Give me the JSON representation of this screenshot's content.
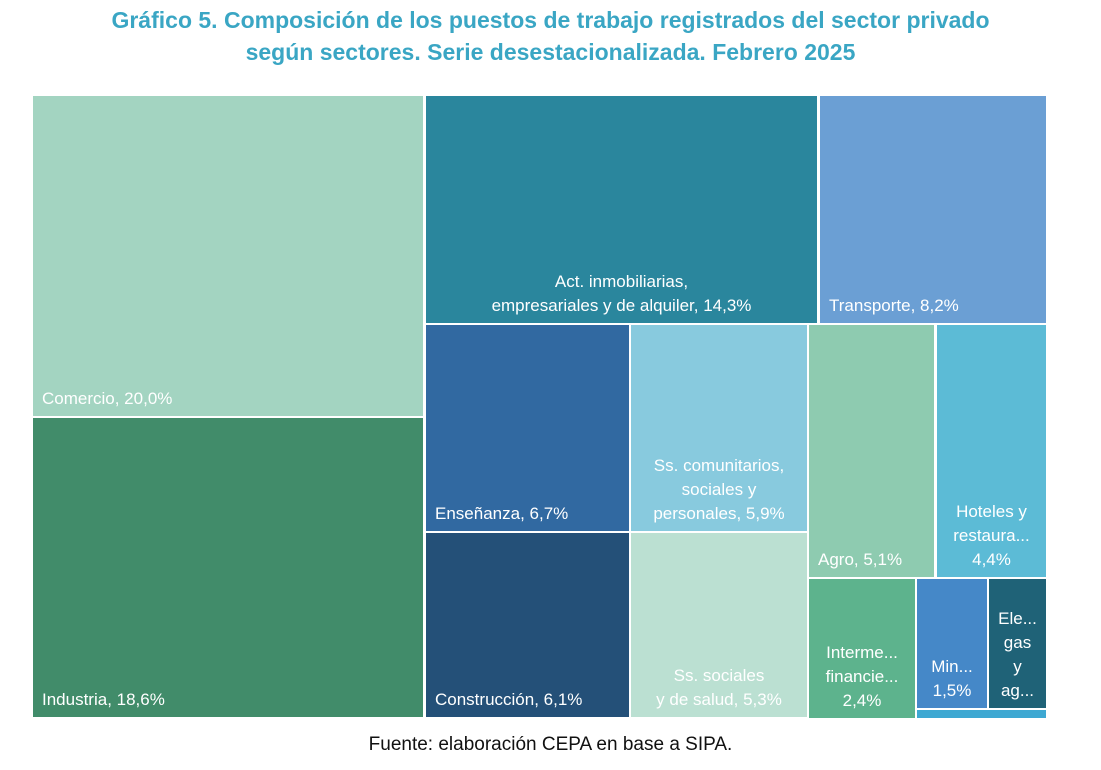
{
  "title": {
    "line1": "Gráfico 5. Composición de los puestos de trabajo registrados del sector privado",
    "line2": "según sectores. Serie desestacionalizada. Febrero 2025"
  },
  "source": "Fuente: elaboración CEPA en base a SIPA.",
  "colors": {
    "title": "#3aa6c4"
  },
  "chart_data": {
    "type": "treemap",
    "unit": "%",
    "items": [
      {
        "label": [
          "Comercio, 20,0%"
        ],
        "name": "Comercio",
        "value": 20.0,
        "color": "#a3d4c1",
        "align": "left"
      },
      {
        "label": [
          "Industria, 18,6%"
        ],
        "name": "Industria",
        "value": 18.6,
        "color": "#418c6a",
        "align": "left"
      },
      {
        "label": [
          "Act. inmobiliarias,",
          "empresariales y de alquiler, 14,3%"
        ],
        "name": "Act. inmobiliarias, empresariales y de alquiler",
        "value": 14.3,
        "color": "#2a869d",
        "align": "center"
      },
      {
        "label": [
          "Transporte, 8,2%"
        ],
        "name": "Transporte",
        "value": 8.2,
        "color": "#6b9fd4",
        "align": "left"
      },
      {
        "label": [
          "Enseñanza, 6,7%"
        ],
        "name": "Enseñanza",
        "value": 6.7,
        "color": "#3169a1",
        "align": "left"
      },
      {
        "label": [
          "Ss. comunitarios,",
          "sociales y",
          "personales, 5,9%"
        ],
        "name": "Ss. comunitarios, sociales y personales",
        "value": 5.9,
        "color": "#88cade",
        "align": "center"
      },
      {
        "label": [
          "Construcción, 6,1%"
        ],
        "name": "Construcción",
        "value": 6.1,
        "color": "#245078",
        "align": "left"
      },
      {
        "label": [
          "Ss. sociales",
          "y de salud, 5,3%"
        ],
        "name": "Ss. sociales y de salud",
        "value": 5.3,
        "color": "#bbe0d2",
        "align": "center"
      },
      {
        "label": [
          "Agro, 5,1%"
        ],
        "name": "Agro",
        "value": 5.1,
        "color": "#8ecbb0",
        "align": "left"
      },
      {
        "label": [
          "Hoteles y",
          "restaura...",
          "4,4%"
        ],
        "name": "Hoteles y restaurantes",
        "value": 4.4,
        "color": "#5cbbd6",
        "align": "center"
      },
      {
        "label": [
          "Interme...",
          "financie...",
          "2,4%"
        ],
        "name": "Intermediación financiera",
        "value": 2.4,
        "color": "#5db38d",
        "align": "center"
      },
      {
        "label": [
          "Min...",
          "1,5%"
        ],
        "name": "Minería",
        "value": 1.5,
        "color": "#4588c8",
        "align": "center"
      },
      {
        "label": [
          "Ele...",
          "gas",
          "y",
          "ag..."
        ],
        "name": "Electricidad, gas y agua",
        "value": null,
        "color": "#1f6277",
        "align": "center"
      },
      {
        "label": [],
        "name": "",
        "value": null,
        "color": "#3ea8d2",
        "align": "none"
      }
    ]
  }
}
